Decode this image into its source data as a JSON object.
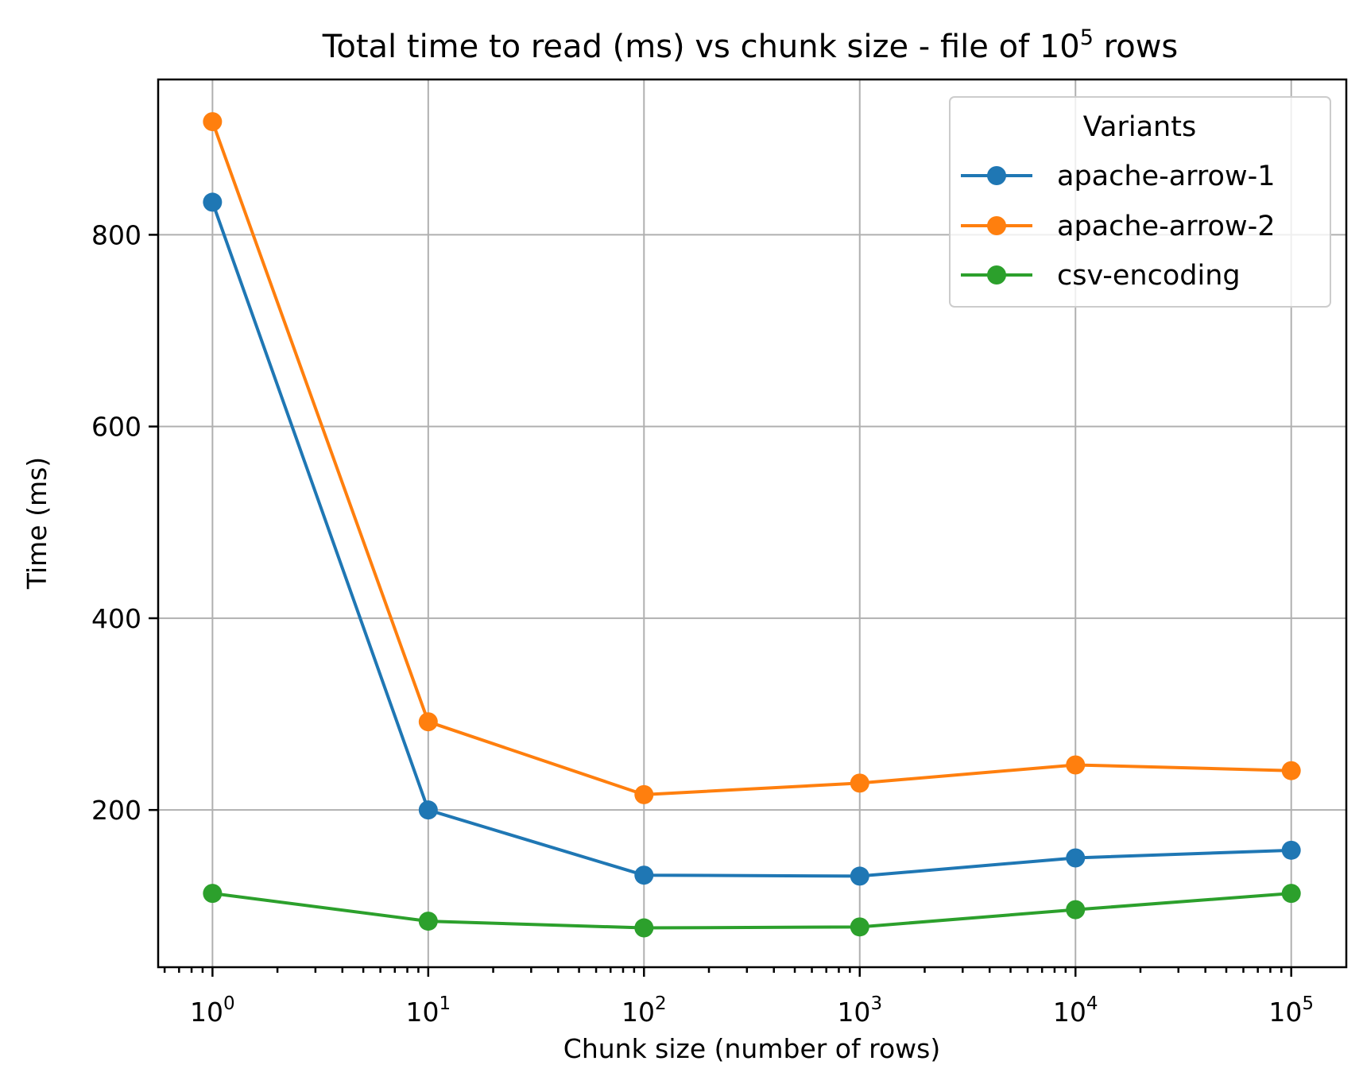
{
  "chart_data": {
    "type": "line",
    "title": "Total time to read (ms) vs chunk size - file of 10",
    "title_exponent": "5",
    "title_suffix": " rows",
    "xlabel": "Chunk size (number of rows)",
    "ylabel": "Time (ms)",
    "xscale": "log",
    "xlim": [
      0.56,
      180000
    ],
    "ylim": [
      36,
      962
    ],
    "grid": true,
    "x": [
      1,
      10,
      100,
      1000,
      10000,
      100000
    ],
    "x_ticks": [
      {
        "value": 1,
        "base": "10",
        "exp": "0"
      },
      {
        "value": 10,
        "base": "10",
        "exp": "1"
      },
      {
        "value": 100,
        "base": "10",
        "exp": "2"
      },
      {
        "value": 1000,
        "base": "10",
        "exp": "3"
      },
      {
        "value": 10000,
        "base": "10",
        "exp": "4"
      },
      {
        "value": 100000,
        "base": "10",
        "exp": "5"
      }
    ],
    "y_ticks": [
      200,
      400,
      600,
      800
    ],
    "legend": {
      "title": "Variants",
      "position": "top-right"
    },
    "series": [
      {
        "name": "apache-arrow-1",
        "color": "#1f77b4",
        "values": [
          834,
          200,
          132,
          131,
          150,
          158
        ]
      },
      {
        "name": "apache-arrow-2",
        "color": "#ff7f0e",
        "values": [
          918,
          292,
          216,
          228,
          247,
          241
        ]
      },
      {
        "name": "csv-encoding",
        "color": "#2ca02c",
        "values": [
          113,
          84,
          77,
          78,
          96,
          113
        ]
      }
    ]
  }
}
